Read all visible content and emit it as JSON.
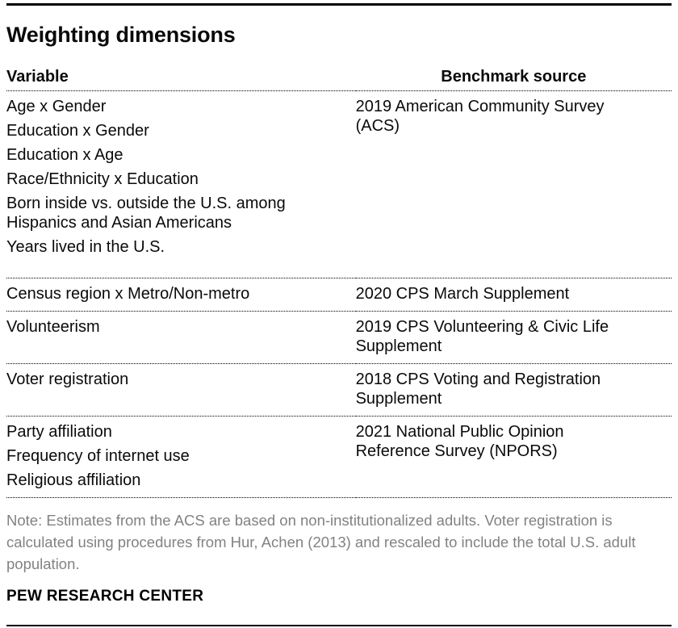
{
  "colors": {
    "text": "#0a0a0a",
    "note_gray": "#808285",
    "rule": "#000000"
  },
  "chart_data": {
    "type": "table",
    "title": "Weighting dimensions",
    "columns": [
      "Variable",
      "Benchmark source"
    ],
    "rows": [
      {
        "variables": [
          "Age x Gender",
          "Education x Gender",
          "Education x Age",
          "Race/Ethnicity x Education",
          "Born inside vs. outside the U.S. among Hispanics and Asian Americans",
          "Years lived in the U.S."
        ],
        "source": "2019 American Community Survey (ACS)"
      },
      {
        "variables": [
          "Census region x Metro/Non-metro"
        ],
        "source": "2020 CPS March Supplement"
      },
      {
        "variables": [
          "Volunteerism"
        ],
        "source": "2019 CPS Volunteering & Civic Life Supplement"
      },
      {
        "variables": [
          "Voter registration"
        ],
        "source": "2018 CPS Voting and Registration Supplement"
      },
      {
        "variables": [
          "Party affiliation",
          "Frequency of internet use",
          "Religious affiliation"
        ],
        "source": "2021 National Public Opinion Reference Survey (NPORS)"
      }
    ],
    "note": "Note: Estimates from the ACS are based on non-institutionalized adults. Voter registration is calculated using procedures from Hur, Achen (2013) and rescaled to include the total U.S. adult population.",
    "source_label": "PEW RESEARCH CENTER"
  }
}
